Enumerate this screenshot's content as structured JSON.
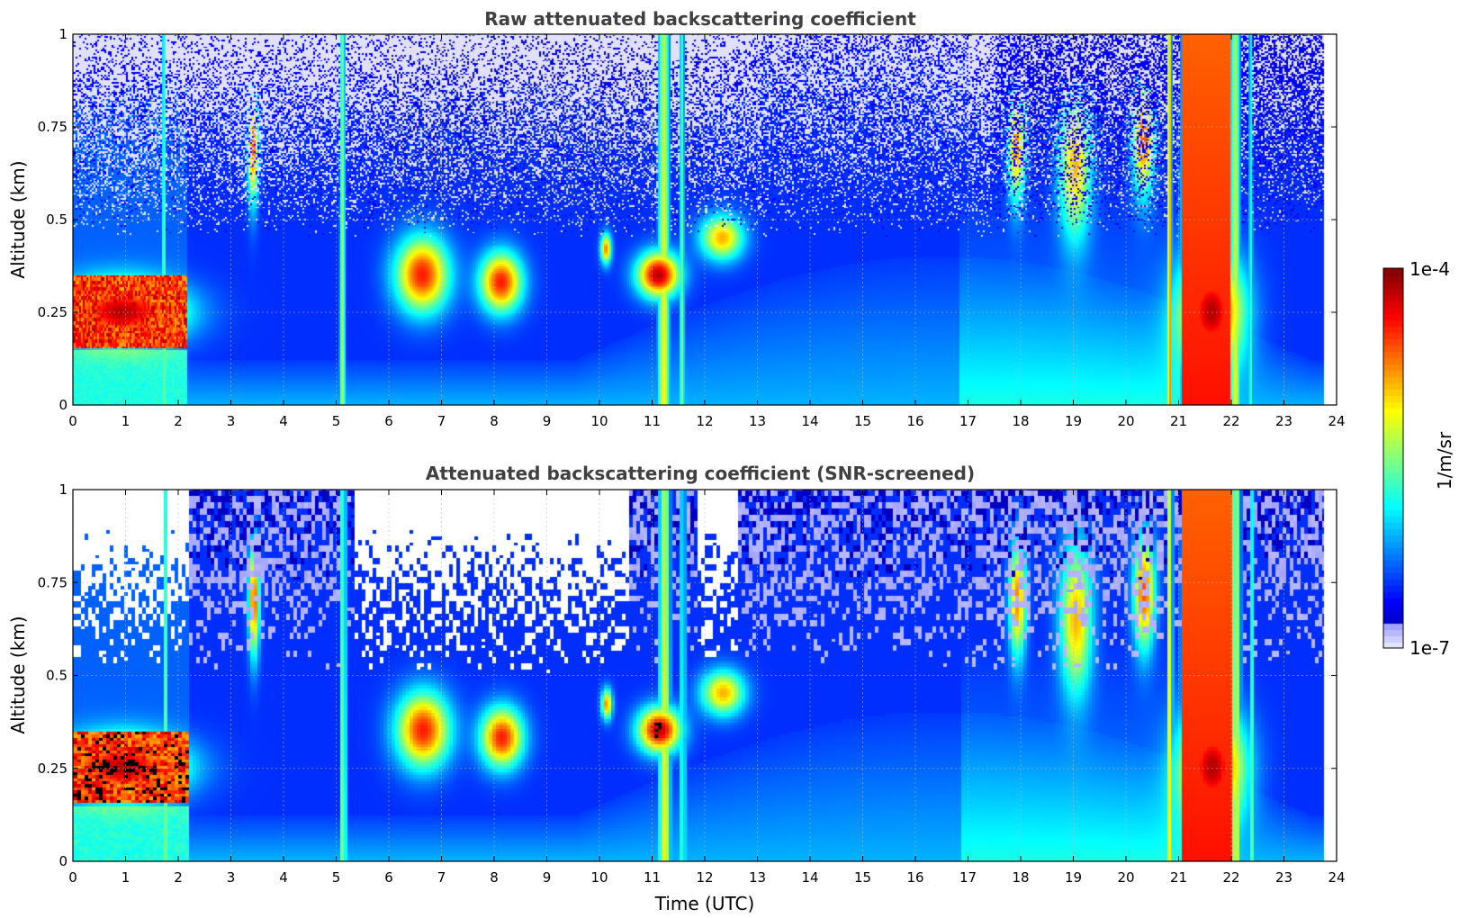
{
  "chart_data": [
    {
      "type": "heatmap",
      "title": "Raw attenuated backscattering coefficient",
      "xlabel": "",
      "ylabel": "Altitude (km)",
      "xlim": [
        0,
        24
      ],
      "ylim": [
        0,
        1
      ],
      "x_ticks": [
        "0",
        "1",
        "2",
        "3",
        "4",
        "5",
        "6",
        "7",
        "8",
        "9",
        "10",
        "11",
        "12",
        "13",
        "14",
        "15",
        "16",
        "17",
        "18",
        "19",
        "20",
        "21",
        "22",
        "23",
        "24"
      ],
      "y_ticks": [
        "0",
        "0.25",
        "0.5",
        "0.75",
        "1"
      ],
      "grid": true,
      "screened": false
    },
    {
      "type": "heatmap",
      "title": "Attenuated backscattering coefficient (SNR-screened)",
      "xlabel": "Time (UTC)",
      "ylabel": "Altitude (km)",
      "xlim": [
        0,
        24
      ],
      "ylim": [
        0,
        1
      ],
      "x_ticks": [
        "0",
        "1",
        "2",
        "3",
        "4",
        "5",
        "6",
        "7",
        "8",
        "9",
        "10",
        "11",
        "12",
        "13",
        "14",
        "15",
        "16",
        "17",
        "18",
        "19",
        "20",
        "21",
        "22",
        "23",
        "24"
      ],
      "y_ticks": [
        "0",
        "0.25",
        "0.5",
        "0.75",
        "1"
      ],
      "grid": true,
      "screened": true
    }
  ],
  "colorbar": {
    "label": "1/m/sr",
    "max_label": "1e-4",
    "min_label": "1e-7",
    "colormap": "jet",
    "scale": "log"
  }
}
